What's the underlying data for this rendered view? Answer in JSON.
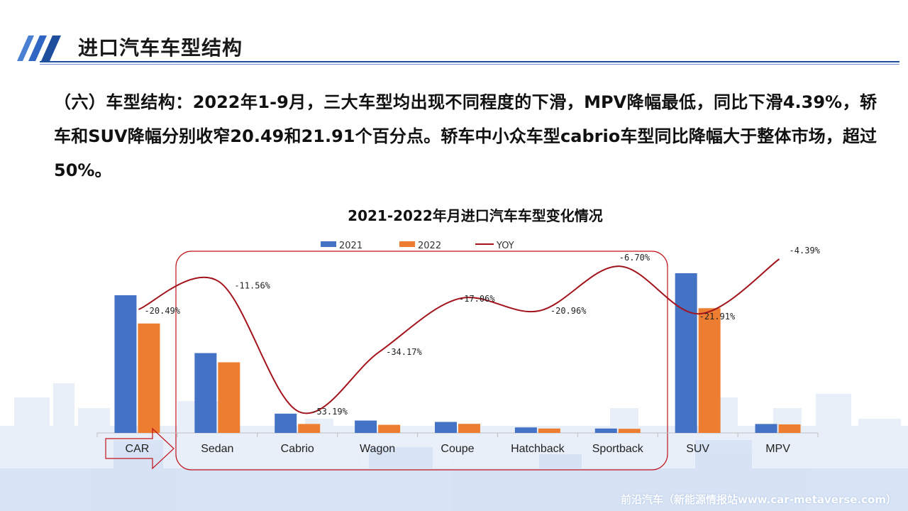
{
  "page": {
    "title": "进口汽车车型结构",
    "intro": "（六）车型结构：2022年1-9月，三大车型均出现不同程度的下滑，MPV降幅最低，同比下滑4.39%，轿车和SUV降幅分别收窄20.49和21.91个百分点。轿车中小众车型cabrio车型同比降幅大于整体市场，超过50%。",
    "watermark": "前沿汽车（新能源情报站www.car-metaverse.com）"
  },
  "colors": {
    "accent": "#1f4e9c",
    "series_2021": "#4472c4",
    "series_2022": "#ed7d31",
    "yoy": "#a3131c",
    "highlight_box": "#c0141c"
  },
  "chart_data": {
    "type": "bar",
    "title": "2021-2022年月进口汽车车型变化情况",
    "categories": [
      "CAR",
      "Sedan",
      "Cabrio",
      "Wagon",
      "Coupe",
      "Hatchback",
      "Sportback",
      "SUV",
      "MPV"
    ],
    "series": [
      {
        "name": "2021",
        "type": "bar",
        "values": [
          100,
          58,
          14,
          9,
          8,
          4,
          3.2,
          116,
          6.5
        ]
      },
      {
        "name": "2022",
        "type": "bar",
        "values": [
          79.5,
          51.3,
          6.5,
          5.9,
          6.6,
          3.2,
          3.0,
          90.6,
          6.2
        ]
      },
      {
        "name": "YOY",
        "type": "line",
        "values": [
          -20.49,
          -11.56,
          -53.19,
          -34.17,
          -17.06,
          -20.96,
          -6.7,
          -21.91,
          -4.39
        ],
        "labels": [
          "-20.49%",
          "-11.56%",
          "-53.19%",
          "-34.17%",
          "-17.06%",
          "-20.96%",
          "-6.70%",
          "-21.91%",
          "-4.39%"
        ]
      }
    ],
    "legend_position": "top",
    "grid": false,
    "highlight_group": [
      "Sedan",
      "Cabrio",
      "Wagon",
      "Coupe",
      "Hatchback",
      "Sportback"
    ]
  }
}
